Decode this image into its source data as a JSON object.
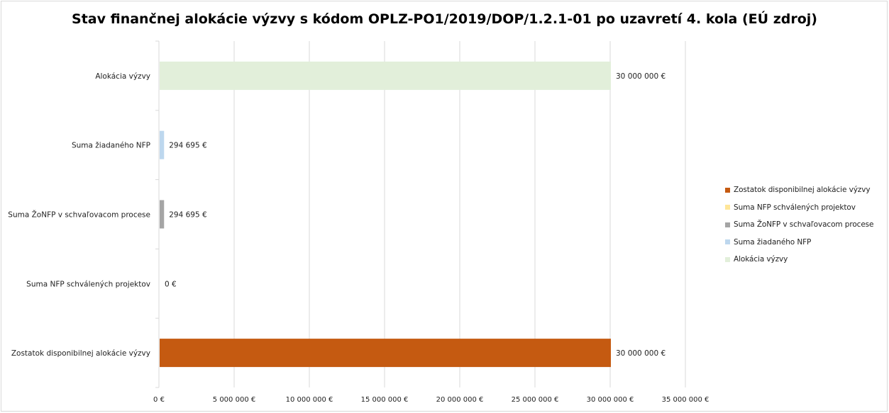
{
  "chart_data": {
    "type": "bar",
    "orientation": "horizontal",
    "title": "Stav finančnej alokácie výzvy s kódom OPLZ-PO1/2019/DOP/1.2.1-01 po uzavretí 4. kola (EÚ zdroj)",
    "categories": [
      "Alokácia výzvy",
      "Suma žiadaného NFP",
      "Suma ŽoNFP v schvaľovacom procese",
      "Suma NFP schválených projektov",
      "Zostatok disponibilnej alokácie výzvy"
    ],
    "values": [
      30000000,
      294695,
      294695,
      0,
      30000000
    ],
    "value_labels": [
      "30 000 000 €",
      "294 695 €",
      "294 695 €",
      "0 €",
      "30 000 000 €"
    ],
    "colors": [
      "#e2efda",
      "#bdd7ee",
      "#a5a5a5",
      "#ffe699",
      "#c55a11"
    ],
    "xlim": [
      0,
      35000000
    ],
    "x_ticks": [
      0,
      5000000,
      10000000,
      15000000,
      20000000,
      25000000,
      30000000,
      35000000
    ],
    "x_tick_labels": [
      "0 €",
      "5 000 000 €",
      "10 000 000 €",
      "15 000 000 €",
      "20 000 000 €",
      "25 000 000 €",
      "30 000 000 €",
      "35 000 000 €"
    ],
    "grid": true,
    "legend_position": "right",
    "legend": [
      {
        "label": "Zostatok disponibilnej alokácie výzvy",
        "color": "#c55a11"
      },
      {
        "label": "Suma NFP schválených projektov",
        "color": "#ffe699"
      },
      {
        "label": "Suma ŽoNFP v schvaľovacom procese",
        "color": "#a5a5a5"
      },
      {
        "label": "Suma žiadaného NFP",
        "color": "#bdd7ee"
      },
      {
        "label": "Alokácia výzvy",
        "color": "#e2efda"
      }
    ]
  }
}
